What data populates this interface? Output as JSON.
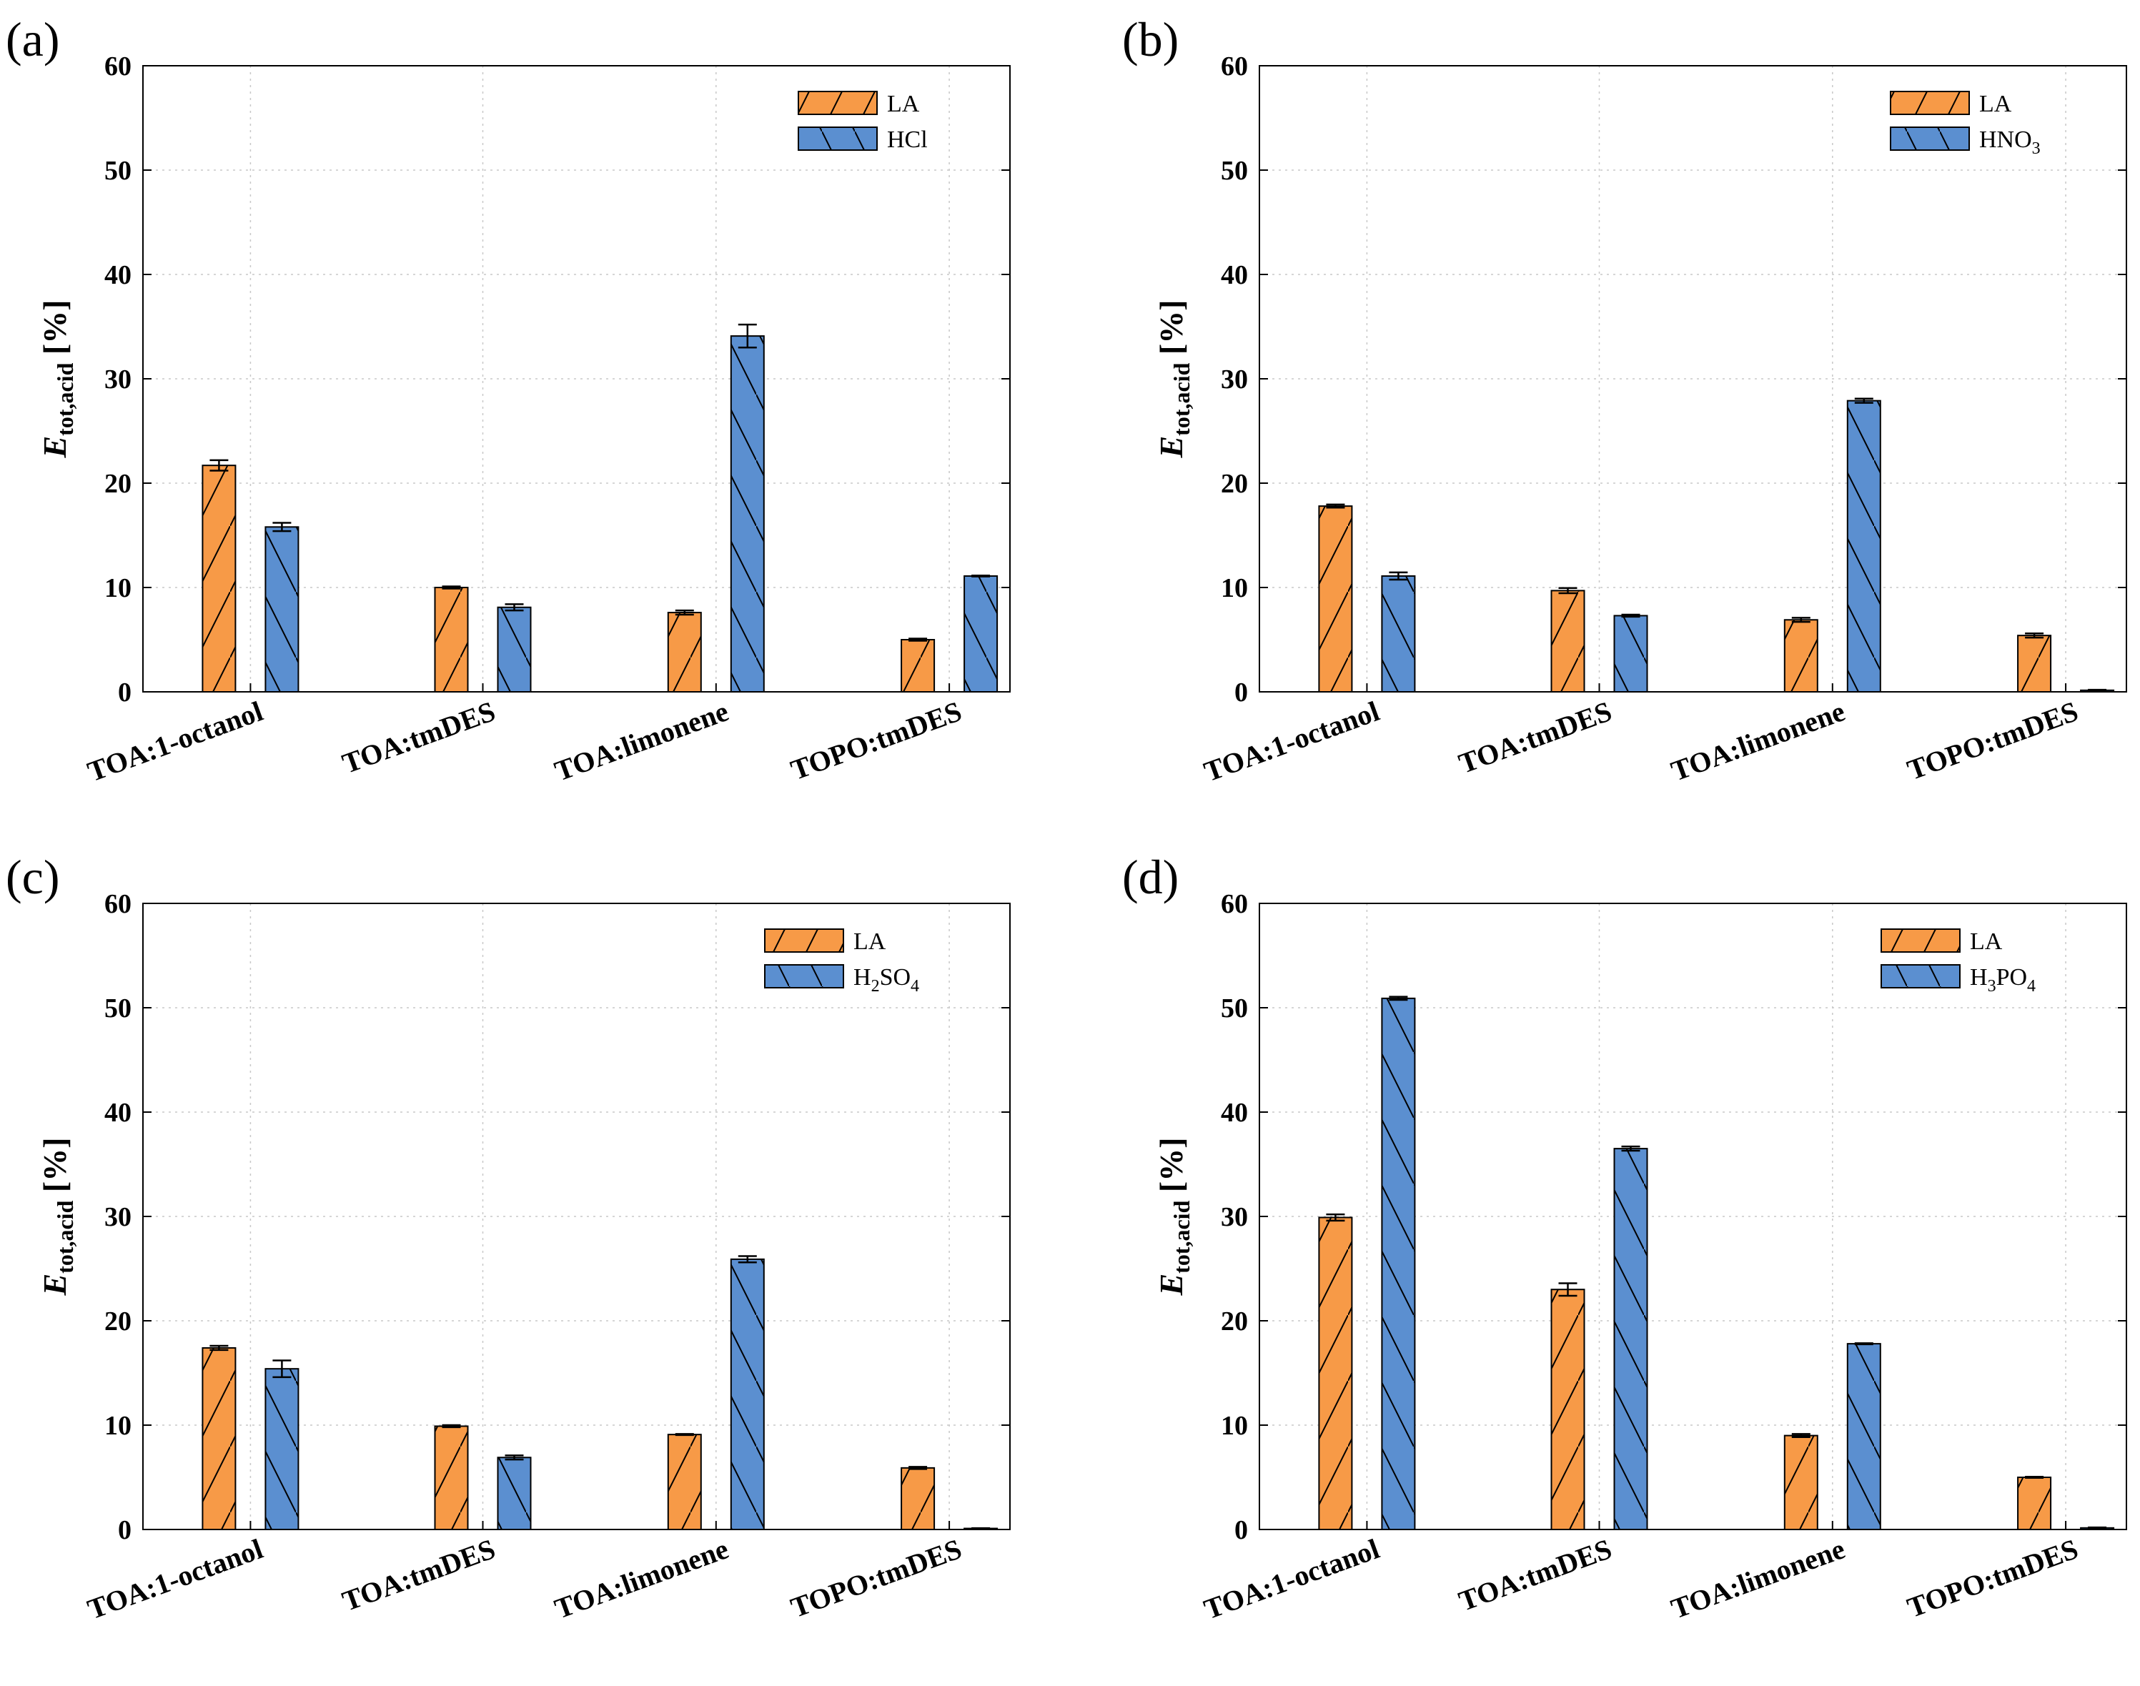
{
  "colors": {
    "la_fill": "#F79A47",
    "acid_fill": "#5B8FD0",
    "stroke": "#000000",
    "grid": "#C8C8C8"
  },
  "chart_data": [
    {
      "panel": "(a)",
      "type": "bar",
      "categories": [
        "TOA:1-octanol",
        "TOA:tmDES",
        "TOA:limonene",
        "TOPO:tmDES"
      ],
      "ylabel": {
        "main": "E",
        "sub": "tot,acid",
        "unit": " [%]"
      },
      "ylim": [
        0,
        60
      ],
      "yticks": [
        "0",
        "10",
        "20",
        "30",
        "40",
        "50",
        "60"
      ],
      "grid": true,
      "legend_position": "top-right",
      "series": [
        {
          "name": "LA",
          "name_sub": "",
          "name_tail": "",
          "hatch": "forward",
          "values": [
            21.7,
            10.0,
            7.6,
            5.0
          ],
          "errors": [
            0.5,
            0.1,
            0.2,
            0.1
          ]
        },
        {
          "name": "HCl",
          "name_sub": "",
          "name_tail": "",
          "hatch": "back",
          "values": [
            15.8,
            8.1,
            34.1,
            11.1
          ],
          "errors": [
            0.4,
            0.3,
            1.1,
            0.05
          ]
        }
      ]
    },
    {
      "panel": "(b)",
      "type": "bar",
      "categories": [
        "TOA:1-octanol",
        "TOA:tmDES",
        "TOA:limonene",
        "TOPO:tmDES"
      ],
      "ylabel": {
        "main": "E",
        "sub": "tot,acid",
        "unit": " [%]"
      },
      "ylim": [
        0,
        60
      ],
      "yticks": [
        "0",
        "10",
        "20",
        "30",
        "40",
        "50",
        "60"
      ],
      "grid": true,
      "legend_position": "top-right",
      "series": [
        {
          "name": "LA",
          "name_sub": "",
          "name_tail": "",
          "hatch": "forward",
          "values": [
            17.8,
            9.7,
            6.9,
            5.4
          ],
          "errors": [
            0.15,
            0.25,
            0.2,
            0.2
          ]
        },
        {
          "name": "HNO",
          "name_sub": "3",
          "name_tail": "",
          "hatch": "back",
          "values": [
            11.1,
            7.3,
            27.9,
            0.15
          ],
          "errors": [
            0.35,
            0.1,
            0.2,
            0.05
          ]
        }
      ]
    },
    {
      "panel": "(c)",
      "type": "bar",
      "categories": [
        "TOA:1-octanol",
        "TOA:tmDES",
        "TOA:limonene",
        "TOPO:tmDES"
      ],
      "ylabel": {
        "main": "E",
        "sub": "tot,acid",
        "unit": " [%]"
      },
      "ylim": [
        0,
        60
      ],
      "yticks": [
        "0",
        "10",
        "20",
        "30",
        "40",
        "50",
        "60"
      ],
      "grid": true,
      "legend_position": "top-right",
      "series": [
        {
          "name": "LA",
          "name_sub": "",
          "name_tail": "",
          "hatch": "forward",
          "values": [
            17.4,
            9.9,
            9.1,
            5.9
          ],
          "errors": [
            0.2,
            0.1,
            0.05,
            0.1
          ]
        },
        {
          "name": "H",
          "name_sub": "2",
          "name_tail": "SO",
          "name_sub2": "4",
          "hatch": "back",
          "values": [
            15.4,
            6.9,
            25.9,
            0.1
          ],
          "errors": [
            0.8,
            0.2,
            0.3,
            0.03
          ]
        }
      ]
    },
    {
      "panel": "(d)",
      "type": "bar",
      "categories": [
        "TOA:1-octanol",
        "TOA:tmDES",
        "TOA:limonene",
        "TOPO:tmDES"
      ],
      "ylabel": {
        "main": "E",
        "sub": "tot,acid",
        "unit": " [%]"
      },
      "ylim": [
        0,
        60
      ],
      "yticks": [
        "0",
        "10",
        "20",
        "30",
        "40",
        "50",
        "60"
      ],
      "grid": true,
      "legend_position": "top-right",
      "series": [
        {
          "name": "LA",
          "name_sub": "",
          "name_tail": "",
          "hatch": "forward",
          "values": [
            29.9,
            23.0,
            9.0,
            5.0
          ],
          "errors": [
            0.3,
            0.6,
            0.15,
            0.05
          ]
        },
        {
          "name": "H",
          "name_sub": "3",
          "name_tail": "PO",
          "name_sub2": "4",
          "hatch": "back",
          "values": [
            50.9,
            36.5,
            17.8,
            0.15
          ],
          "errors": [
            0.15,
            0.2,
            0.05,
            0.05
          ]
        }
      ]
    }
  ]
}
